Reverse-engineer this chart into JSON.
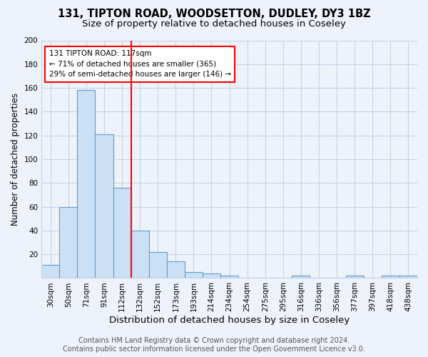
{
  "title1": "131, TIPTON ROAD, WOODSETTON, DUDLEY, DY3 1BZ",
  "title2": "Size of property relative to detached houses in Coseley",
  "xlabel": "Distribution of detached houses by size in Coseley",
  "ylabel": "Number of detached properties",
  "categories": [
    "30sqm",
    "50sqm",
    "71sqm",
    "91sqm",
    "112sqm",
    "132sqm",
    "152sqm",
    "173sqm",
    "193sqm",
    "214sqm",
    "234sqm",
    "254sqm",
    "275sqm",
    "295sqm",
    "316sqm",
    "336sqm",
    "356sqm",
    "377sqm",
    "397sqm",
    "418sqm",
    "438sqm"
  ],
  "values": [
    11,
    60,
    158,
    121,
    76,
    40,
    22,
    14,
    5,
    4,
    2,
    0,
    0,
    0,
    2,
    0,
    0,
    2,
    0,
    2,
    2
  ],
  "bar_color": "#cce0f5",
  "bar_edge_color": "#5a9fd4",
  "vline_x": 5,
  "vline_color": "red",
  "annotation_text": "131 TIPTON ROAD: 117sqm\n← 71% of detached houses are smaller (365)\n29% of semi-detached houses are larger (146) →",
  "annotation_box_color": "white",
  "annotation_box_edge": "red",
  "ylim": [
    0,
    200
  ],
  "yticks": [
    0,
    20,
    40,
    60,
    80,
    100,
    120,
    140,
    160,
    180,
    200
  ],
  "footer1": "Contains HM Land Registry data © Crown copyright and database right 2024.",
  "footer2": "Contains public sector information licensed under the Open Government Licence v3.0.",
  "bg_color": "#eef2fa",
  "grid_color": "#c8d4e8",
  "title1_fontsize": 10.5,
  "title2_fontsize": 9.5,
  "xlabel_fontsize": 9.5,
  "ylabel_fontsize": 8.5,
  "tick_fontsize": 7.5,
  "footer_fontsize": 7
}
